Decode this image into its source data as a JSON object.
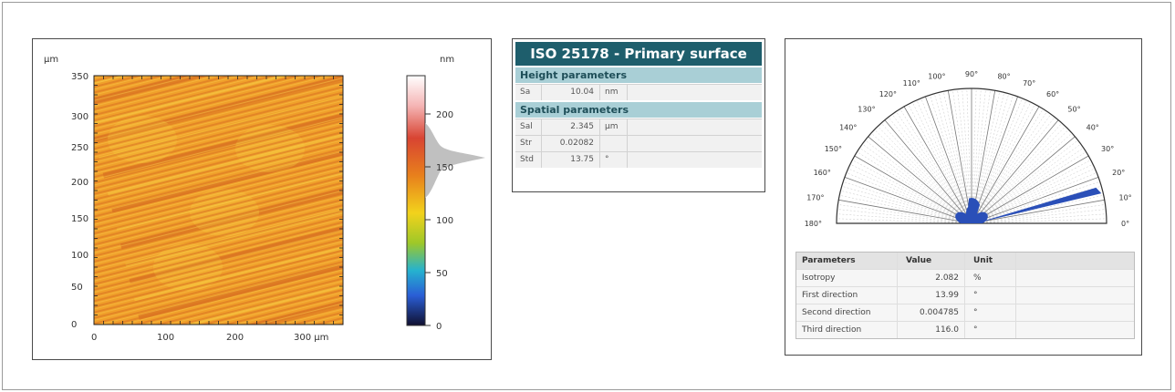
{
  "map": {
    "y_unit": "µm",
    "z_unit": "nm",
    "y_ticks": [
      "350",
      "300",
      "250",
      "200",
      "150",
      "100",
      "50",
      "0"
    ],
    "x_ticks": [
      "0",
      "100",
      "200",
      "300 µm"
    ],
    "scale_ticks": [
      "200",
      "150",
      "100",
      "50",
      "0"
    ],
    "colors": {
      "base": "#f0a02a",
      "band_dark": "#d2621e",
      "band_light": "#f5c83c",
      "scale_stops": [
        "#ffffff",
        "#f5b5b5",
        "#d84432",
        "#e8801c",
        "#f2d21c",
        "#9ec828",
        "#25b2cf",
        "#2a5ed6",
        "#101030"
      ]
    }
  },
  "iso_table": {
    "title": "ISO 25178 - Primary surface",
    "height_header": "Height parameters",
    "height_rows": [
      {
        "name": "Sa",
        "value": "10.04",
        "unit": "nm"
      }
    ],
    "spatial_header": "Spatial parameters",
    "spatial_rows": [
      {
        "name": "Sal",
        "value": "2.345",
        "unit": "µm"
      },
      {
        "name": "Str",
        "value": "0.02082",
        "unit": ""
      },
      {
        "name": "Std",
        "value": "13.75",
        "unit": "°"
      }
    ],
    "colors": {
      "title_bg": "#1e5e6c",
      "header_bg": "#a9cfd6"
    }
  },
  "rose": {
    "angle_labels": [
      "0°",
      "10°",
      "20°",
      "30°",
      "40°",
      "50°",
      "60°",
      "70°",
      "80°",
      "90°",
      "100°",
      "110°",
      "120°",
      "130°",
      "140°",
      "150°",
      "160°",
      "170°",
      "180°"
    ],
    "lobe_color": "#2a4fb8"
  },
  "param_table": {
    "headers": [
      "Parameters",
      "Value",
      "Unit"
    ],
    "rows": [
      {
        "name": "Isotropy",
        "value": "2.082",
        "unit": "%"
      },
      {
        "name": "First direction",
        "value": "13.99",
        "unit": "°"
      },
      {
        "name": "Second direction",
        "value": "0.004785",
        "unit": "°"
      },
      {
        "name": "Third direction",
        "value": "116.0",
        "unit": "°"
      }
    ]
  }
}
